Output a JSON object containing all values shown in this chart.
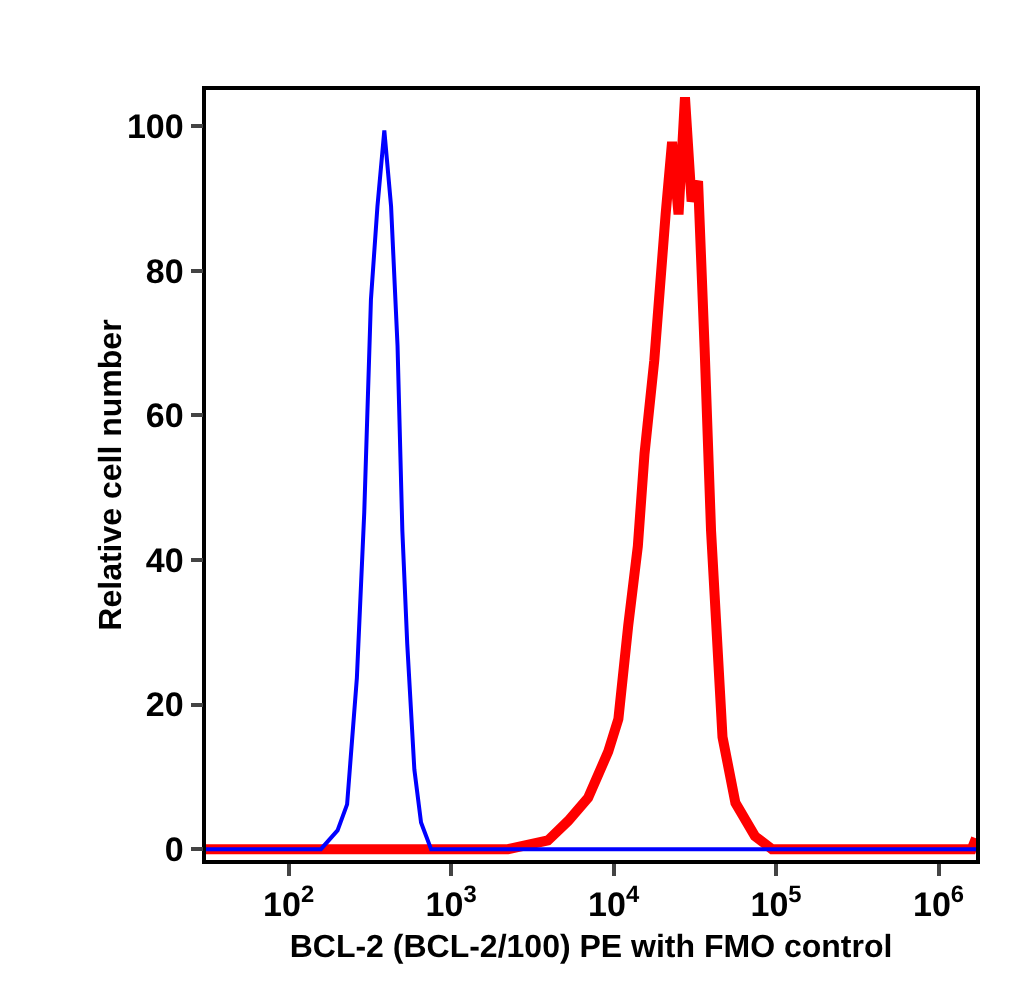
{
  "chart_data": {
    "type": "line",
    "xlabel": "BCL-2 (BCL-2/100) PE with FMO control",
    "ylabel": "Relative cell number",
    "log": "x",
    "xlim": [
      31,
      1700000
    ],
    "ylim": [
      -1.5,
      105
    ],
    "xticks": [
      {
        "value": 100,
        "label": "10$^{2}$"
      },
      {
        "value": 1000,
        "label": "10$^{3}$"
      },
      {
        "value": 10000,
        "label": "10$^{4}$"
      },
      {
        "value": 100000,
        "label": "10$^{5}$"
      },
      {
        "value": 1000000,
        "label": "10$^{6}$"
      }
    ],
    "yticks": [
      0,
      20,
      40,
      60,
      80,
      100
    ],
    "grid": false,
    "marker": "none",
    "line_style": "solid",
    "series": [
      {
        "color": "#ff0000",
        "x": [
          31,
          2240,
          3940,
          5250,
          6970,
          9270,
          10700,
          12300,
          14100,
          15500,
          17800,
          20900,
          22900,
          25100,
          27500,
          30200,
          33100,
          36300,
          39800,
          46800,
          56200,
          74100,
          94400,
          1600000,
          1700000
        ],
        "values": [
          0,
          0,
          1.2,
          3.9,
          7.1,
          13.5,
          18,
          30.9,
          41.9,
          54.7,
          67.6,
          87.8,
          97.8,
          87.8,
          104,
          89.6,
          92.4,
          69.4,
          44,
          15.5,
          6.4,
          1.8,
          0,
          0,
          1.5
        ]
      },
      {
        "color": "#0000ff",
        "x": [
          31,
          158,
          200,
          229,
          263,
          292,
          321,
          352,
          388,
          427,
          468,
          501,
          537,
          594,
          653,
          753,
          1700000
        ],
        "values": [
          0,
          0,
          2.6,
          6.2,
          23.7,
          46.6,
          76,
          88.9,
          99.4,
          88.9,
          69.6,
          44,
          28.4,
          11,
          3.7,
          0,
          0
        ]
      }
    ]
  }
}
